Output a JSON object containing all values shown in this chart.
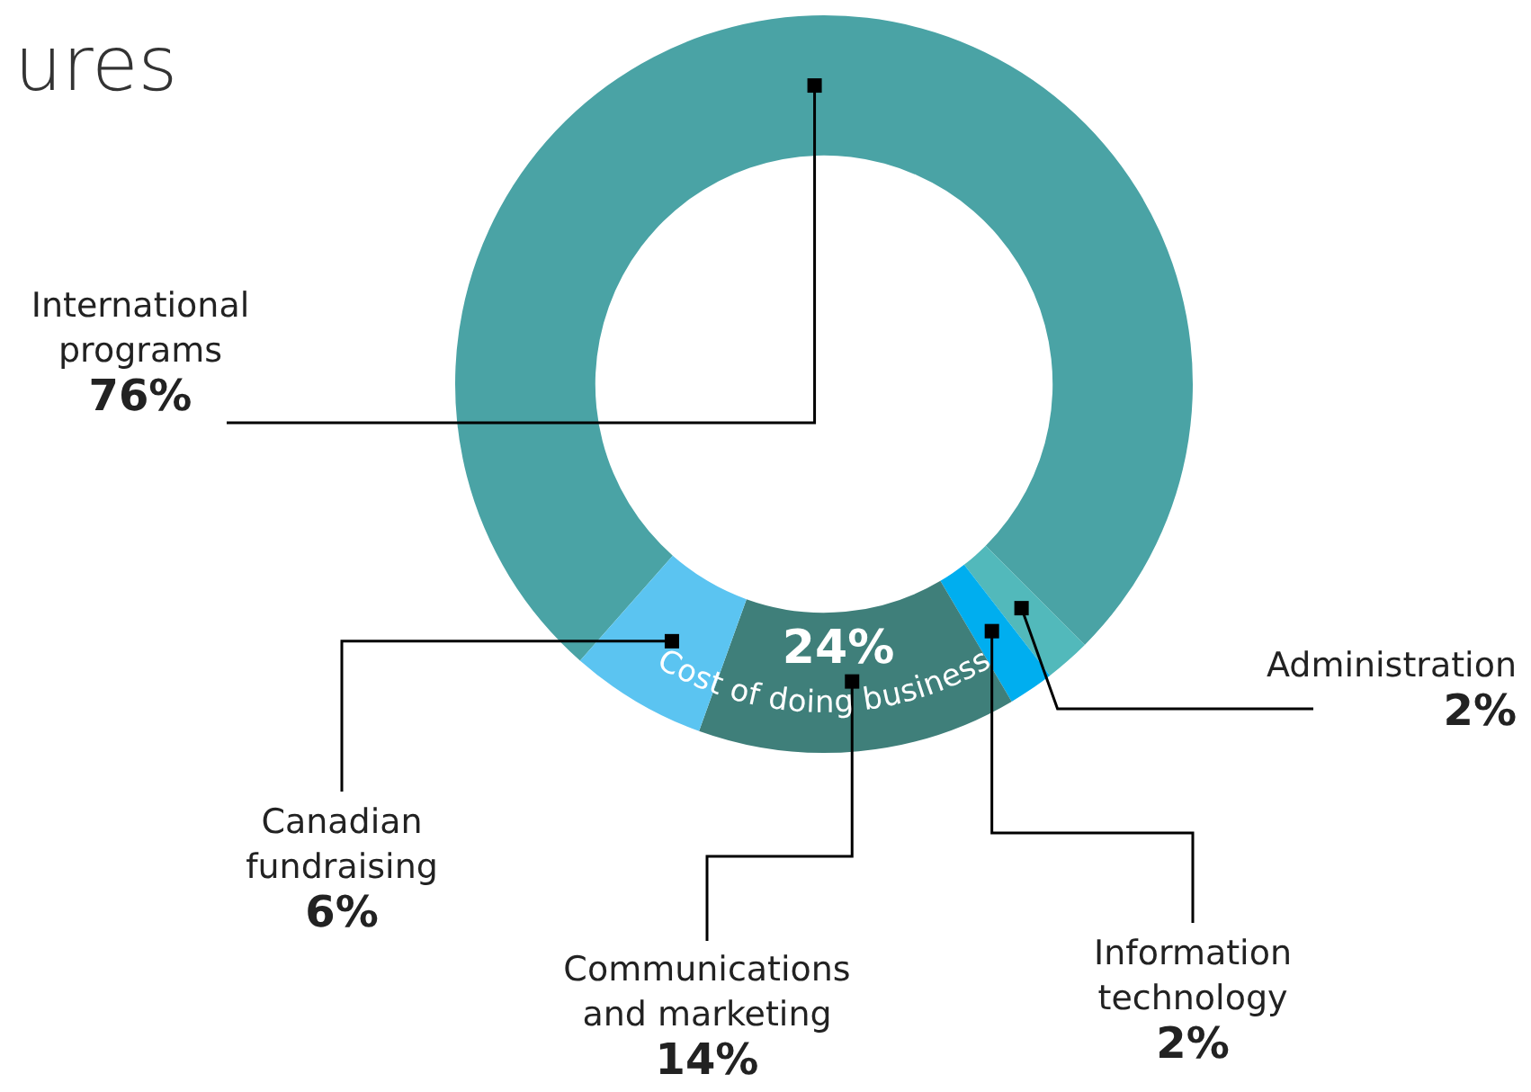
{
  "chart_data": {
    "type": "donut",
    "title": "ures",
    "categories": [
      "International programs",
      "Administration",
      "Information technology",
      "Communications and marketing",
      "Canadian fundraising"
    ],
    "values": [
      76,
      2,
      2,
      14,
      6
    ],
    "colors": [
      "#4aa3a5",
      "#52b9bb",
      "#00aeef",
      "#3f7f7a",
      "#5bc4f1"
    ],
    "value_labels": [
      "76%",
      "2%",
      "2%",
      "14%",
      "6%"
    ],
    "annotations": [
      "24%",
      "Cost of doing business"
    ],
    "legend": false
  }
}
